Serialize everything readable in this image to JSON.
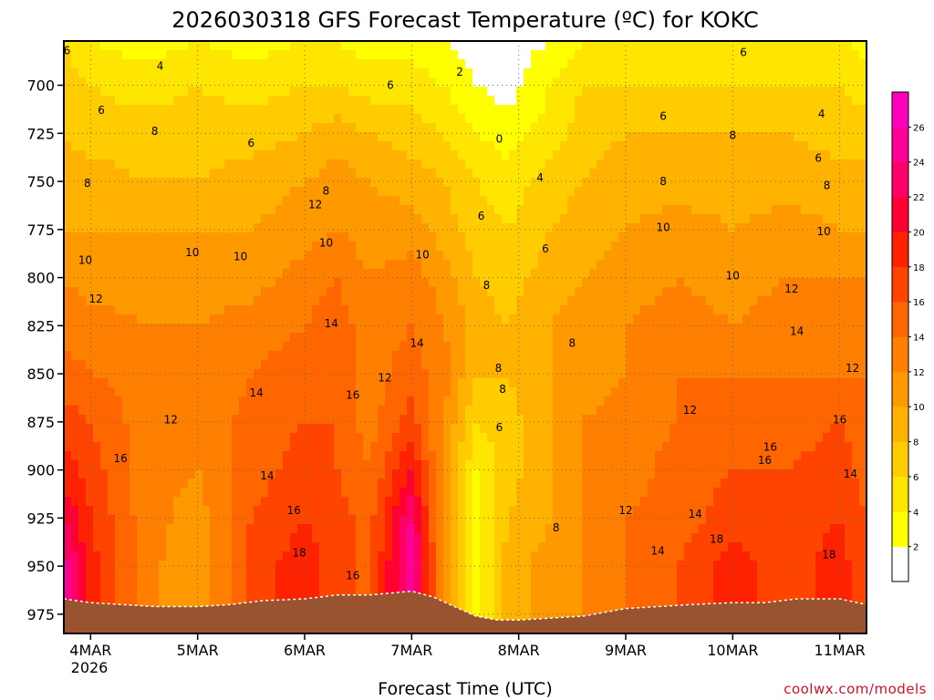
{
  "chart_data": {
    "type": "heatmap",
    "title": "2026030318 GFS Forecast Temperature (ºC) for KOKC",
    "xlabel": "Forecast Time (UTC)",
    "ylabel": "",
    "credit": "coolwx.com/models",
    "x_ticks": [
      "4MAR",
      "5MAR",
      "6MAR",
      "7MAR",
      "8MAR",
      "9MAR",
      "10MAR",
      "11MAR"
    ],
    "x_year_label": "2026",
    "x_range_days": [
      3.75,
      11.25
    ],
    "y_ticks": [
      700,
      725,
      750,
      775,
      800,
      825,
      850,
      875,
      900,
      925,
      950,
      975
    ],
    "y_range_hpa": [
      677,
      985
    ],
    "colorbar": {
      "tick_labels": [
        "2",
        "4",
        "6",
        "8",
        "10",
        "12",
        "14",
        "16",
        "18",
        "20",
        "22",
        "24",
        "26"
      ],
      "bins": [
        {
          "min": null,
          "max": 2,
          "color": "#ffffff"
        },
        {
          "min": 2,
          "max": 4,
          "color": "#ffff00"
        },
        {
          "min": 4,
          "max": 6,
          "color": "#ffe600"
        },
        {
          "min": 6,
          "max": 8,
          "color": "#ffcc00"
        },
        {
          "min": 8,
          "max": 10,
          "color": "#ffb300"
        },
        {
          "min": 10,
          "max": 12,
          "color": "#ff9900"
        },
        {
          "min": 12,
          "max": 14,
          "color": "#ff8000"
        },
        {
          "min": 14,
          "max": 16,
          "color": "#ff6600"
        },
        {
          "min": 16,
          "max": 18,
          "color": "#ff4400"
        },
        {
          "min": 18,
          "max": 20,
          "color": "#ff2200"
        },
        {
          "min": 20,
          "max": 22,
          "color": "#ff0033"
        },
        {
          "min": 22,
          "max": 24,
          "color": "#ff0066"
        },
        {
          "min": 24,
          "max": 26,
          "color": "#ff0099"
        },
        {
          "min": 26,
          "max": null,
          "color": "#ff00bb"
        }
      ]
    },
    "terrain_color": "#99542f",
    "surface_pressure_hpa": {
      "x": [
        3.75,
        4.0,
        4.3,
        4.6,
        5.0,
        5.3,
        5.6,
        6.0,
        6.3,
        6.6,
        7.0,
        7.2,
        7.4,
        7.6,
        7.8,
        8.0,
        8.3,
        8.6,
        9.0,
        9.3,
        9.6,
        10.0,
        10.3,
        10.6,
        11.0,
        11.25
      ],
      "p": [
        967,
        969,
        970,
        971,
        971,
        970,
        968,
        967,
        965,
        965,
        963,
        966,
        971,
        976,
        978,
        978,
        977,
        976,
        972,
        971,
        970,
        969,
        969,
        967,
        967,
        970
      ]
    },
    "temperature_profiles": [
      {
        "day": 3.75,
        "p": [
          677,
          700,
          725,
          750,
          775,
          800,
          825,
          850,
          875,
          900,
          925,
          950,
          975
        ],
        "t": [
          6,
          7,
          8,
          9,
          10,
          12,
          13,
          15,
          17,
          19,
          22,
          25,
          25
        ]
      },
      {
        "day": 4.0,
        "p": [
          677,
          700,
          725,
          750,
          775,
          800,
          825,
          850,
          875,
          900,
          925,
          950,
          975
        ],
        "t": [
          4,
          6,
          7,
          9,
          10,
          11,
          13,
          14,
          16,
          17,
          18,
          19,
          19
        ]
      },
      {
        "day": 4.5,
        "p": [
          677,
          700,
          725,
          750,
          775,
          800,
          825,
          850,
          875,
          900,
          925,
          950,
          975
        ],
        "t": [
          3,
          5,
          7,
          8,
          10,
          11,
          12,
          13,
          13,
          13,
          13,
          13,
          13
        ]
      },
      {
        "day": 5.0,
        "p": [
          677,
          700,
          725,
          750,
          775,
          800,
          825,
          850,
          875,
          900,
          925,
          950,
          975
        ],
        "t": [
          4,
          6,
          7,
          8,
          10,
          11,
          12,
          12,
          12,
          12,
          11,
          10,
          10
        ]
      },
      {
        "day": 5.5,
        "p": [
          677,
          700,
          725,
          750,
          775,
          800,
          825,
          850,
          875,
          900,
          925,
          950,
          975
        ],
        "t": [
          3,
          5,
          7,
          9,
          10,
          11,
          13,
          14,
          15,
          15,
          16,
          17,
          17
        ]
      },
      {
        "day": 6.0,
        "p": [
          677,
          700,
          725,
          750,
          775,
          800,
          825,
          850,
          875,
          900,
          925,
          950,
          975
        ],
        "t": [
          4,
          6,
          8,
          10,
          11,
          13,
          14,
          15,
          16,
          17,
          18,
          19,
          19
        ]
      },
      {
        "day": 6.3,
        "p": [
          677,
          700,
          725,
          750,
          775,
          800,
          825,
          850,
          875,
          900,
          925,
          950,
          975
        ],
        "t": [
          4,
          6,
          9,
          11,
          12,
          14,
          15,
          16,
          16,
          16,
          17,
          17,
          17
        ]
      },
      {
        "day": 6.6,
        "p": [
          677,
          700,
          725,
          750,
          775,
          800,
          825,
          850,
          875,
          900,
          925,
          950,
          975
        ],
        "t": [
          3,
          5,
          8,
          10,
          11,
          12,
          13,
          13,
          13,
          14,
          15,
          15,
          15
        ]
      },
      {
        "day": 7.0,
        "p": [
          677,
          700,
          725,
          750,
          775,
          800,
          825,
          850,
          875,
          900,
          925,
          950,
          975
        ],
        "t": [
          3,
          5,
          7,
          9,
          11,
          13,
          14,
          15,
          17,
          20,
          24,
          26,
          26
        ]
      },
      {
        "day": 7.3,
        "p": [
          677,
          700,
          725,
          750,
          775,
          800,
          825,
          850,
          875,
          900,
          925,
          950,
          975
        ],
        "t": [
          2,
          4,
          6,
          8,
          9,
          11,
          12,
          13,
          12,
          11,
          11,
          11,
          11
        ]
      },
      {
        "day": 7.6,
        "p": [
          677,
          700,
          725,
          750,
          775,
          800,
          825,
          850,
          875,
          900,
          925,
          950,
          975
        ],
        "t": [
          1,
          2,
          4,
          6,
          7,
          8,
          9,
          8,
          6,
          4,
          3,
          3,
          3
        ]
      },
      {
        "day": 7.9,
        "p": [
          677,
          700,
          725,
          750,
          775,
          800,
          825,
          850,
          875,
          900,
          925,
          950,
          975
        ],
        "t": [
          1,
          1,
          3,
          5,
          6,
          7,
          8,
          8,
          7,
          7,
          8,
          9,
          9
        ]
      },
      {
        "day": 8.3,
        "p": [
          677,
          700,
          725,
          750,
          775,
          800,
          825,
          850,
          875,
          900,
          925,
          950,
          975
        ],
        "t": [
          2,
          4,
          5,
          7,
          8,
          9,
          10,
          10,
          10,
          10,
          10,
          11,
          11
        ]
      },
      {
        "day": 8.6,
        "p": [
          677,
          700,
          725,
          750,
          775,
          800,
          825,
          850,
          875,
          900,
          925,
          950,
          975
        ],
        "t": [
          4,
          6,
          7,
          8,
          9,
          10,
          11,
          11,
          12,
          12,
          12,
          12,
          12
        ]
      },
      {
        "day": 9.0,
        "p": [
          677,
          700,
          725,
          750,
          775,
          800,
          825,
          850,
          875,
          900,
          925,
          950,
          975
        ],
        "t": [
          5,
          6,
          8,
          9,
          10,
          11,
          12,
          12,
          13,
          13,
          14,
          14,
          14
        ]
      },
      {
        "day": 9.5,
        "p": [
          677,
          700,
          725,
          750,
          775,
          800,
          825,
          850,
          875,
          900,
          925,
          950,
          975
        ],
        "t": [
          5,
          6,
          8,
          9,
          11,
          12,
          13,
          14,
          14,
          15,
          15,
          16,
          16
        ]
      },
      {
        "day": 10.0,
        "p": [
          677,
          700,
          725,
          750,
          775,
          800,
          825,
          850,
          875,
          900,
          925,
          950,
          975
        ],
        "t": [
          5,
          6,
          8,
          9,
          10,
          11,
          12,
          14,
          15,
          16,
          17,
          19,
          19
        ]
      },
      {
        "day": 10.5,
        "p": [
          677,
          700,
          725,
          750,
          775,
          800,
          825,
          850,
          875,
          900,
          925,
          950,
          975
        ],
        "t": [
          5,
          6,
          8,
          9,
          11,
          12,
          13,
          14,
          15,
          16,
          17,
          17,
          17
        ]
      },
      {
        "day": 11.0,
        "p": [
          677,
          700,
          725,
          750,
          775,
          800,
          825,
          850,
          875,
          900,
          925,
          950,
          975
        ],
        "t": [
          5,
          6,
          7,
          9,
          10,
          12,
          13,
          14,
          16,
          17,
          18,
          19,
          19
        ]
      },
      {
        "day": 11.25,
        "p": [
          677,
          700,
          725,
          750,
          775,
          800,
          825,
          850,
          875,
          900,
          925,
          950,
          975
        ],
        "t": [
          3,
          5,
          7,
          9,
          10,
          12,
          13,
          14,
          15,
          15,
          16,
          16,
          16
        ]
      }
    ],
    "contour_labels": [
      {
        "text": "6",
        "day": 3.78,
        "p": 682
      },
      {
        "text": "4",
        "day": 4.65,
        "p": 690
      },
      {
        "text": "6",
        "day": 4.1,
        "p": 713
      },
      {
        "text": "8",
        "day": 4.6,
        "p": 724
      },
      {
        "text": "6",
        "day": 5.5,
        "p": 730
      },
      {
        "text": "6",
        "day": 6.8,
        "p": 700
      },
      {
        "text": "2",
        "day": 7.45,
        "p": 693
      },
      {
        "text": "0",
        "day": 7.82,
        "p": 728
      },
      {
        "text": "4",
        "day": 8.2,
        "p": 748
      },
      {
        "text": "6",
        "day": 7.65,
        "p": 768
      },
      {
        "text": "6",
        "day": 8.25,
        "p": 785
      },
      {
        "text": "8",
        "day": 3.97,
        "p": 751
      },
      {
        "text": "8",
        "day": 6.2,
        "p": 755
      },
      {
        "text": "12",
        "day": 6.1,
        "p": 762
      },
      {
        "text": "10",
        "day": 3.95,
        "p": 791
      },
      {
        "text": "10",
        "day": 4.95,
        "p": 787
      },
      {
        "text": "10",
        "day": 5.4,
        "p": 789
      },
      {
        "text": "10",
        "day": 6.2,
        "p": 782
      },
      {
        "text": "10",
        "day": 7.1,
        "p": 788
      },
      {
        "text": "8",
        "day": 7.7,
        "p": 804
      },
      {
        "text": "12",
        "day": 4.05,
        "p": 811
      },
      {
        "text": "14",
        "day": 6.25,
        "p": 824
      },
      {
        "text": "14",
        "day": 7.05,
        "p": 834
      },
      {
        "text": "14",
        "day": 5.55,
        "p": 860
      },
      {
        "text": "16",
        "day": 6.45,
        "p": 861
      },
      {
        "text": "12",
        "day": 6.75,
        "p": 852
      },
      {
        "text": "12",
        "day": 4.75,
        "p": 874
      },
      {
        "text": "8",
        "day": 7.81,
        "p": 847
      },
      {
        "text": "8",
        "day": 7.85,
        "p": 858
      },
      {
        "text": "6",
        "day": 7.82,
        "p": 878
      },
      {
        "text": "8",
        "day": 8.5,
        "p": 834
      },
      {
        "text": "16",
        "day": 4.28,
        "p": 894
      },
      {
        "text": "14",
        "day": 5.65,
        "p": 903
      },
      {
        "text": "16",
        "day": 5.9,
        "p": 921
      },
      {
        "text": "18",
        "day": 5.95,
        "p": 943
      },
      {
        "text": "16",
        "day": 6.45,
        "p": 955
      },
      {
        "text": "8",
        "day": 8.35,
        "p": 930
      },
      {
        "text": "12",
        "day": 9.0,
        "p": 921
      },
      {
        "text": "14",
        "day": 9.3,
        "p": 942
      },
      {
        "text": "12",
        "day": 9.6,
        "p": 869
      },
      {
        "text": "14",
        "day": 9.65,
        "p": 923
      },
      {
        "text": "18",
        "day": 9.85,
        "p": 936
      },
      {
        "text": "16",
        "day": 10.3,
        "p": 895
      },
      {
        "text": "16",
        "day": 10.35,
        "p": 888
      },
      {
        "text": "10",
        "day": 9.35,
        "p": 774
      },
      {
        "text": "10",
        "day": 10.0,
        "p": 799
      },
      {
        "text": "8",
        "day": 9.35,
        "p": 750
      },
      {
        "text": "8",
        "day": 10.0,
        "p": 726
      },
      {
        "text": "6",
        "day": 9.35,
        "p": 716
      },
      {
        "text": "6",
        "day": 10.1,
        "p": 683
      },
      {
        "text": "12",
        "day": 10.55,
        "p": 806
      },
      {
        "text": "14",
        "day": 10.6,
        "p": 828
      },
      {
        "text": "10",
        "day": 10.85,
        "p": 776
      },
      {
        "text": "8",
        "day": 10.88,
        "p": 752
      },
      {
        "text": "6",
        "day": 10.8,
        "p": 738
      },
      {
        "text": "4",
        "day": 10.83,
        "p": 715
      },
      {
        "text": "12",
        "day": 11.12,
        "p": 847
      },
      {
        "text": "16",
        "day": 11.0,
        "p": 874
      },
      {
        "text": "14",
        "day": 11.1,
        "p": 902
      },
      {
        "text": "18",
        "day": 10.9,
        "p": 944
      }
    ]
  }
}
